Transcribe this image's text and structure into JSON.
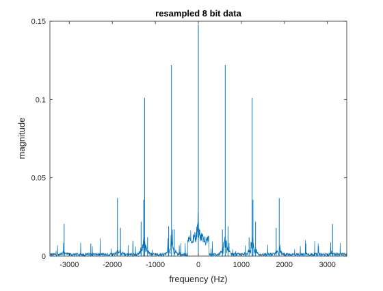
{
  "chart_data": {
    "type": "line",
    "title": "resampled 8 bit data",
    "xlabel": "frequency (Hz)",
    "ylabel": "magnitude",
    "xlim": [
      -3450,
      3450
    ],
    "ylim": [
      0,
      0.15
    ],
    "xticks": [
      -3000,
      -2000,
      -1000,
      0,
      1000,
      2000,
      3000
    ],
    "xtick_labels": [
      "-3000",
      "-2000",
      "-1000",
      "0",
      "1000",
      "2000",
      "3000"
    ],
    "yticks": [
      0,
      0.05,
      0.1,
      0.15
    ],
    "ytick_labels": [
      "0",
      "0.05",
      "0.1",
      "0.15"
    ],
    "grid": false,
    "line_color": "#0072BD",
    "series": [
      {
        "peaks": [
          {
            "x": -3120,
            "y": 0.0205
          },
          {
            "x": -2500,
            "y": 0.008
          },
          {
            "x": -1880,
            "y": 0.037
          },
          {
            "x": -1810,
            "y": 0.018
          },
          {
            "x": -1330,
            "y": 0.022
          },
          {
            "x": -1270,
            "y": 0.036
          },
          {
            "x": -1250,
            "y": 0.101
          },
          {
            "x": -1180,
            "y": 0.012
          },
          {
            "x": -690,
            "y": 0.019
          },
          {
            "x": -625,
            "y": 0.122
          },
          {
            "x": -560,
            "y": 0.017
          },
          {
            "x": 0,
            "y": 0.148
          },
          {
            "x": 560,
            "y": 0.017
          },
          {
            "x": 625,
            "y": 0.122
          },
          {
            "x": 690,
            "y": 0.019
          },
          {
            "x": 1180,
            "y": 0.012
          },
          {
            "x": 1250,
            "y": 0.101
          },
          {
            "x": 1270,
            "y": 0.036
          },
          {
            "x": 1330,
            "y": 0.022
          },
          {
            "x": 1810,
            "y": 0.018
          },
          {
            "x": 1880,
            "y": 0.037
          },
          {
            "x": 2500,
            "y": 0.008
          },
          {
            "x": 3120,
            "y": 0.0205
          }
        ],
        "noise_floor": 0.002,
        "center_hump": {
          "x": [
            -250,
            250
          ],
          "y": 0.012
        }
      }
    ]
  }
}
